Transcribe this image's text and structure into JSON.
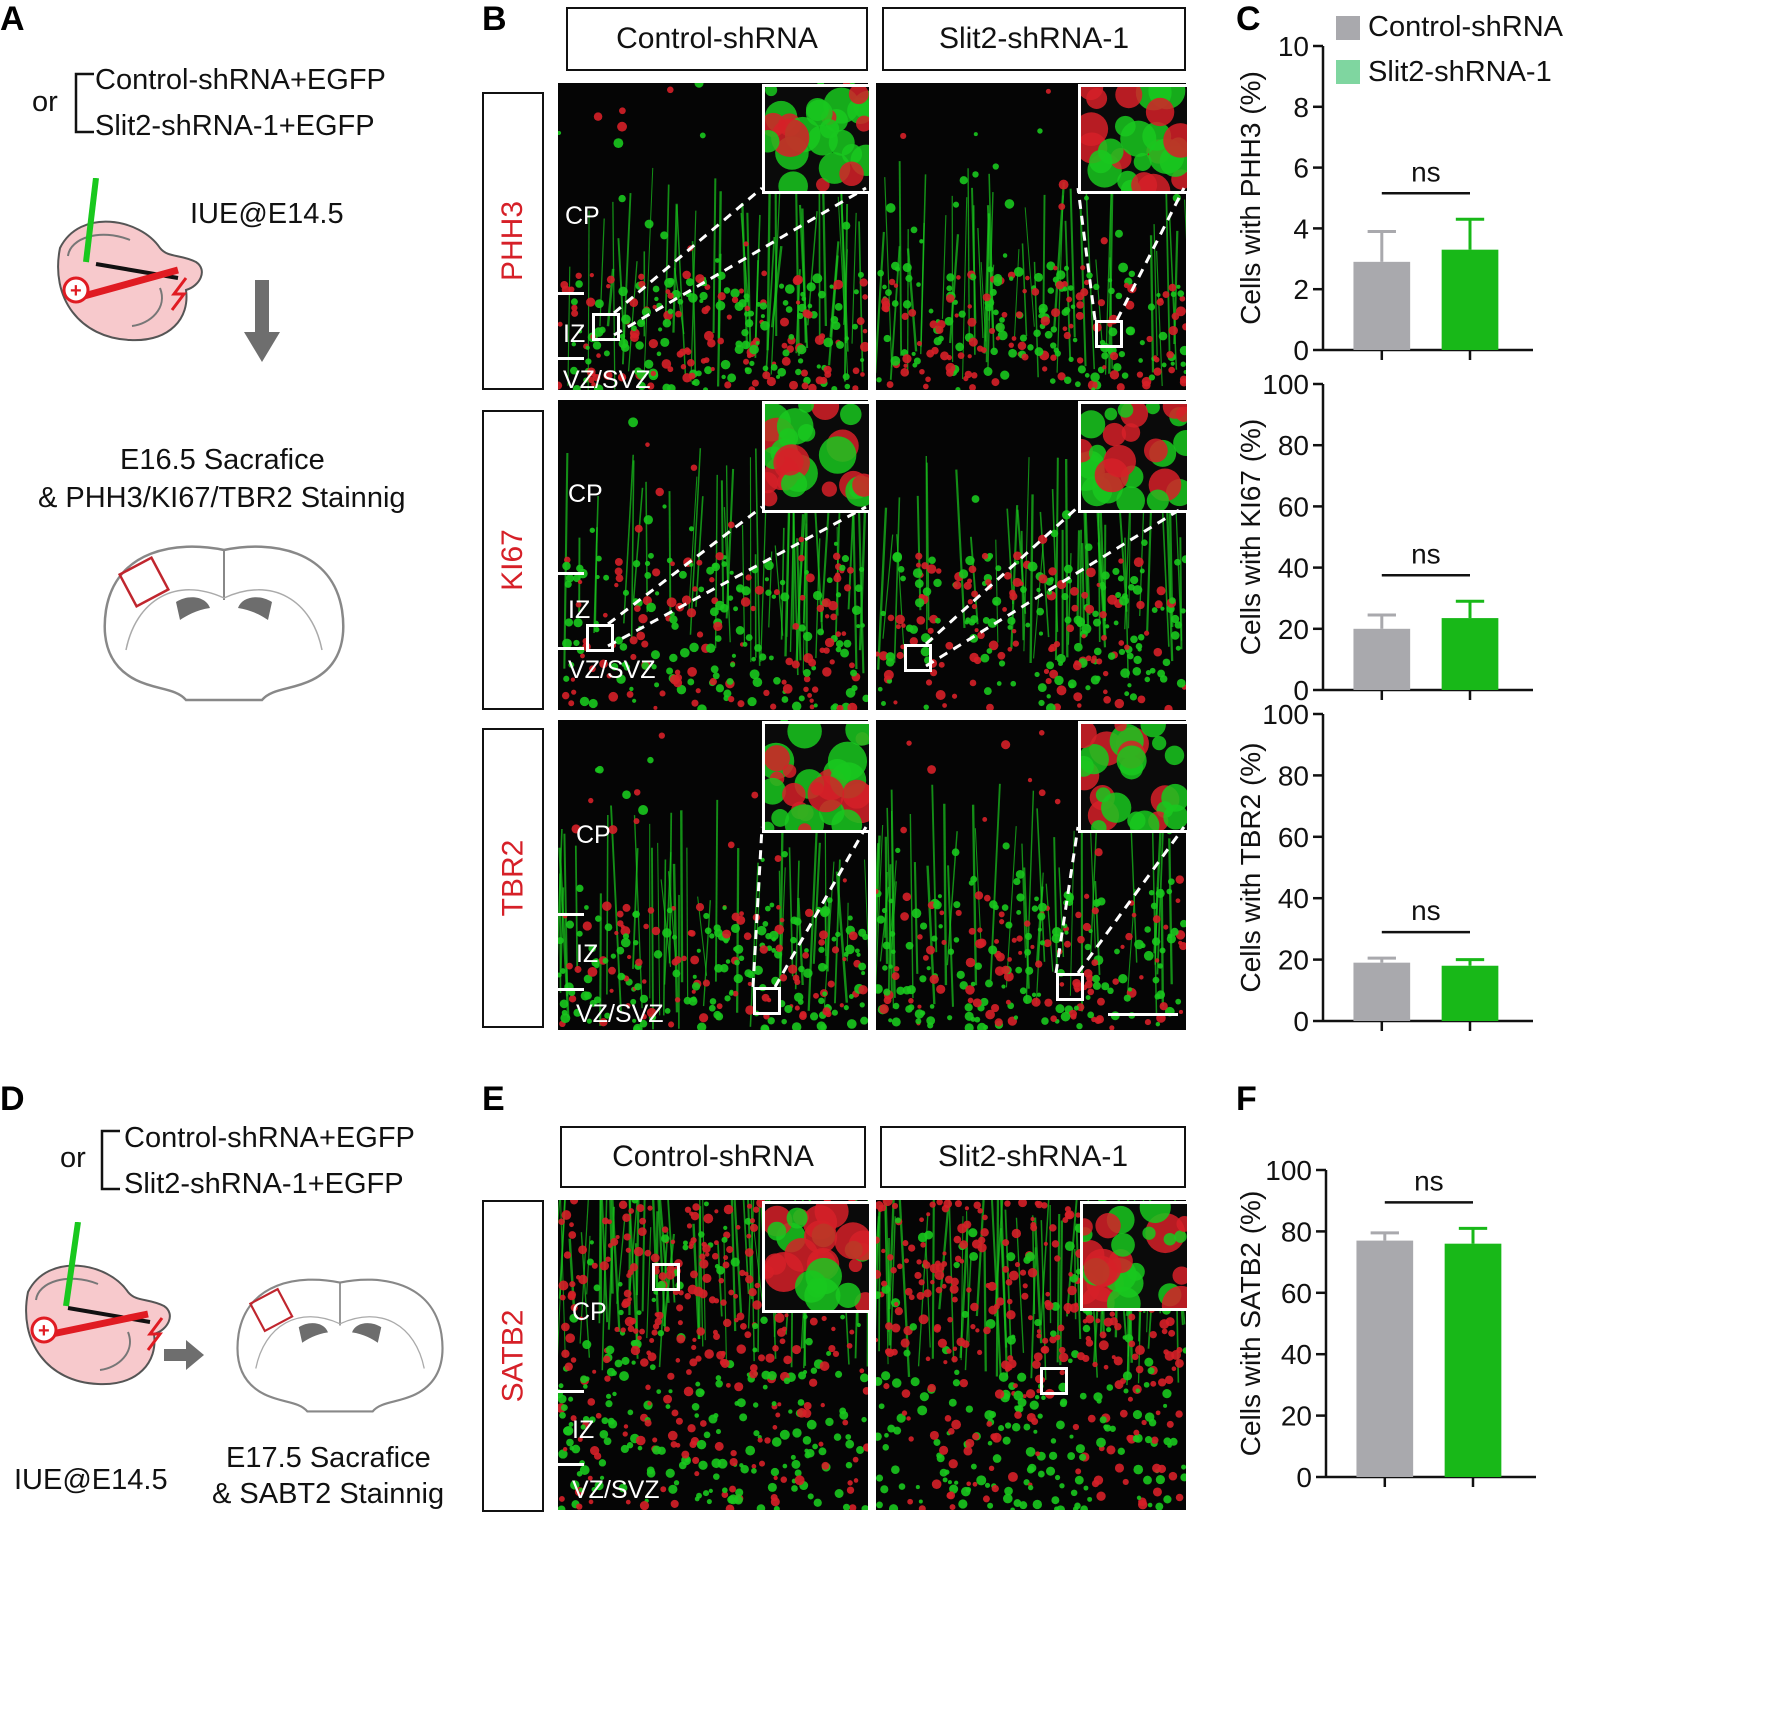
{
  "panels": {
    "A": "A",
    "B": "B",
    "C": "C",
    "D": "D",
    "E": "E",
    "F": "F"
  },
  "panel_a": {
    "or": "or",
    "option1": "Control-shRNA+EGFP",
    "option2": "Slit2-shRNA-1+EGFP",
    "iue": "IUE@E14.5",
    "step_line1": "E16.5 Sacrafice",
    "step_line2": "& PHH3/KI67/TBR2 Stainnig"
  },
  "panel_b": {
    "col1": "Control-shRNA",
    "col2": "Slit2-shRNA-1",
    "rows": [
      "PHH3",
      "KI67",
      "TBR2"
    ],
    "zones": {
      "cp": "CP",
      "iz": "IZ",
      "vz": "VZ/SVZ"
    }
  },
  "panel_d": {
    "or": "or",
    "option1": "Control-shRNA+EGFP",
    "option2": "Slit2-shRNA-1+EGFP",
    "iue": "IUE@E14.5",
    "step_line1": "E17.5 Sacrafice",
    "step_line2": "& SABT2 Stainnig"
  },
  "panel_e": {
    "col1": "Control-shRNA",
    "col2": "Slit2-shRNA-1",
    "row": "SATB2",
    "zones": {
      "cp": "CP",
      "iz": "IZ",
      "vz": "VZ/SVZ"
    }
  },
  "colors": {
    "control": "#a9a9ad",
    "slit2": "#18b818",
    "marker": "#d62028",
    "egfp": "#19c81e",
    "legend_slit2": "#7fd6a0"
  },
  "chart_data": [
    {
      "type": "bar",
      "categories": [
        "Control-shRNA",
        "Slit2-shRNA-1"
      ],
      "values": [
        2.9,
        3.3
      ],
      "errors": [
        1.0,
        1.0
      ],
      "ylabel": "Cells with PHH3 (%)",
      "ylim": [
        0,
        10
      ],
      "yticks": [
        0,
        2,
        4,
        6,
        8,
        10
      ],
      "annotation": "ns",
      "legend": [
        "Control-shRNA",
        "Slit2-shRNA-1"
      ],
      "legend_position": "top-right"
    },
    {
      "type": "bar",
      "categories": [
        "Control-shRNA",
        "Slit2-shRNA-1"
      ],
      "values": [
        20,
        23.5
      ],
      "errors": [
        4.5,
        5.5
      ],
      "ylabel": "Cells with KI67 (%)",
      "ylim": [
        0,
        100
      ],
      "yticks": [
        0,
        20,
        40,
        60,
        80,
        100
      ],
      "annotation": "ns"
    },
    {
      "type": "bar",
      "categories": [
        "Control-shRNA",
        "Slit2-shRNA-1"
      ],
      "values": [
        19,
        18
      ],
      "errors": [
        1.5,
        2.0
      ],
      "ylabel": "Cells with TBR2 (%)",
      "ylim": [
        0,
        100
      ],
      "yticks": [
        0,
        20,
        40,
        60,
        80,
        100
      ],
      "annotation": "ns"
    },
    {
      "type": "bar",
      "categories": [
        "Control-shRNA",
        "Slit2-shRNA-1"
      ],
      "values": [
        77,
        76
      ],
      "errors": [
        2.5,
        5.0
      ],
      "ylabel": "Cells with SATB2 (%)",
      "ylim": [
        0,
        100
      ],
      "yticks": [
        0,
        20,
        40,
        60,
        80,
        100
      ],
      "annotation": "ns"
    }
  ]
}
